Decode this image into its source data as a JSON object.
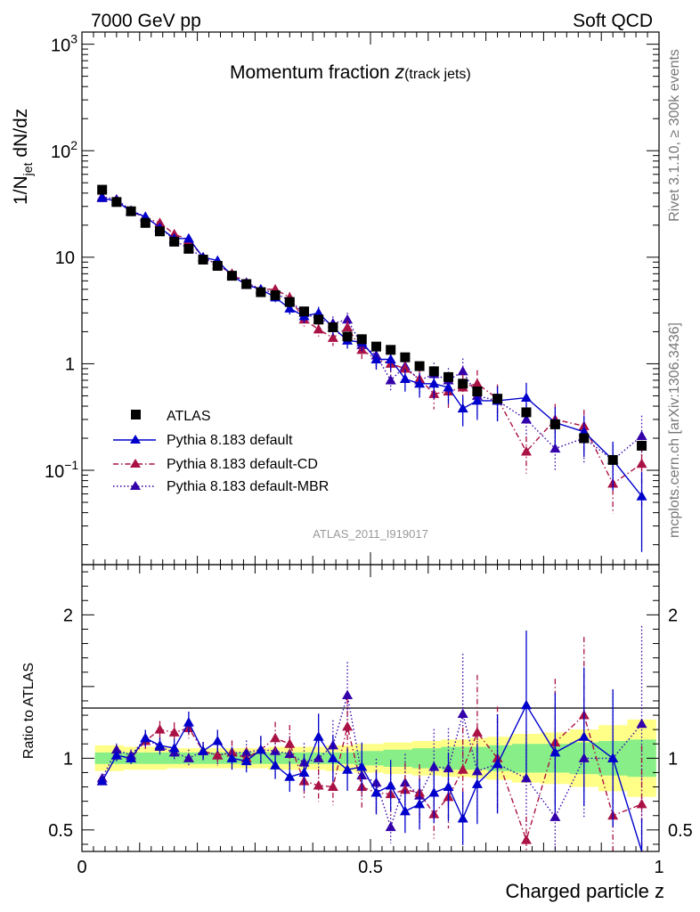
{
  "header": {
    "left": "7000 GeV pp",
    "right": "Soft QCD"
  },
  "side_labels": {
    "rivet": "Rivet 3.1.10, ≥ 300k events",
    "mcplots": "mcplots.cern.ch [arXiv:1306.3436]"
  },
  "analysis_id": "ATLAS_2011_I919017",
  "chart_data": [
    {
      "type": "scatter",
      "title_main": "Momentum fraction ",
      "title_z": "z",
      "title_sub": "(track jets)",
      "ylabel_prefix": "1/N",
      "ylabel_sub": "jet",
      "ylabel_suffix": " dN/dz",
      "yscale": "log",
      "ylim": [
        0.013,
        1300
      ],
      "xlim": [
        0,
        1
      ],
      "y_ticks": [
        {
          "value": 1000,
          "base": "10",
          "exp": "3"
        },
        {
          "value": 100,
          "base": "10",
          "exp": "2"
        },
        {
          "value": 10,
          "label": "10"
        },
        {
          "value": 1,
          "label": "1"
        },
        {
          "value": 0.1,
          "base": "10",
          "exp": "−1"
        }
      ],
      "legend_position": "middle-left",
      "x": [
        0.035,
        0.06,
        0.085,
        0.11,
        0.135,
        0.16,
        0.185,
        0.21,
        0.235,
        0.26,
        0.285,
        0.31,
        0.335,
        0.36,
        0.385,
        0.41,
        0.435,
        0.46,
        0.485,
        0.51,
        0.535,
        0.56,
        0.585,
        0.61,
        0.635,
        0.66,
        0.685,
        0.72,
        0.77,
        0.82,
        0.87,
        0.92,
        0.97
      ],
      "series": [
        {
          "name": "ATLAS",
          "style": "data",
          "color": "#000000",
          "values": [
            43,
            33,
            27,
            21,
            17.5,
            14,
            12,
            9.5,
            8.3,
            6.7,
            5.6,
            4.7,
            4.4,
            3.8,
            3.1,
            2.6,
            2.2,
            1.8,
            1.7,
            1.45,
            1.35,
            1.15,
            0.95,
            0.85,
            0.75,
            0.65,
            0.55,
            0.47,
            0.35,
            0.27,
            0.2,
            0.125,
            0.17
          ],
          "errors": [
            0,
            0,
            0,
            0,
            0,
            0,
            0,
            0,
            0,
            0,
            0,
            0,
            0,
            0,
            0,
            0,
            0,
            0,
            0,
            0,
            0,
            0,
            0,
            0,
            0,
            0,
            0,
            0,
            0,
            0,
            0,
            0,
            0.03
          ]
        },
        {
          "name": "Pythia 8.183 default",
          "style": "solid",
          "color": "#0000cc",
          "values": [
            36,
            33.5,
            27,
            24,
            19,
            15,
            15,
            10,
            9.3,
            6.7,
            5.5,
            5,
            4.2,
            3.3,
            2.8,
            3,
            2.2,
            1.65,
            1.6,
            1.1,
            1.1,
            0.72,
            0.65,
            0.65,
            0.6,
            0.38,
            0.45,
            0.45,
            0.48,
            0.28,
            0.23,
            0.125,
            0.057
          ],
          "errors": [
            0.03,
            0.04,
            0.04,
            0.05,
            0.05,
            0.06,
            0.06,
            0.06,
            0.07,
            0.08,
            0.08,
            0.09,
            0.1,
            0.12,
            0.14,
            0.14,
            0.16,
            0.16,
            0.18,
            0.2,
            0.22,
            0.24,
            0.26,
            0.28,
            0.3,
            0.32,
            0.34,
            0.36,
            0.38,
            0.4,
            0.42,
            0.48,
            0.7
          ]
        },
        {
          "name": "Pythia 8.183 default-CD",
          "style": "dashdot",
          "color": "#aa1144",
          "values": [
            36,
            33.5,
            27,
            23.5,
            21,
            16.5,
            14.5,
            10,
            8.5,
            7,
            5.6,
            5,
            5,
            4.2,
            2.6,
            2.1,
            1.75,
            2.2,
            1.35,
            1.1,
            1,
            0.9,
            0.72,
            0.52,
            0.55,
            0.6,
            0.65,
            0.47,
            0.15,
            0.3,
            0.26,
            0.075,
            0.115
          ],
          "errors": [
            0.03,
            0.04,
            0.04,
            0.05,
            0.05,
            0.06,
            0.06,
            0.06,
            0.07,
            0.08,
            0.08,
            0.09,
            0.1,
            0.12,
            0.14,
            0.14,
            0.16,
            0.16,
            0.18,
            0.2,
            0.22,
            0.24,
            0.26,
            0.28,
            0.3,
            0.32,
            0.34,
            0.36,
            0.38,
            0.4,
            0.42,
            0.48,
            0.6
          ]
        },
        {
          "name": "Pythia 8.183 default-MBR",
          "style": "dotted",
          "color": "#3300aa",
          "values": [
            37,
            35,
            27.5,
            24,
            19,
            14.5,
            12,
            10,
            8.5,
            7,
            5.8,
            5,
            4.6,
            3.9,
            3,
            2.6,
            2.4,
            2.6,
            1.5,
            1.2,
            0.7,
            0.95,
            0.7,
            0.8,
            0.7,
            0.85,
            0.5,
            0.45,
            0.3,
            0.16,
            0.2,
            0.125,
            0.21
          ],
          "errors": [
            0.03,
            0.04,
            0.04,
            0.05,
            0.05,
            0.06,
            0.06,
            0.06,
            0.07,
            0.08,
            0.08,
            0.09,
            0.1,
            0.12,
            0.14,
            0.14,
            0.16,
            0.16,
            0.18,
            0.2,
            0.22,
            0.24,
            0.26,
            0.28,
            0.3,
            0.32,
            0.34,
            0.36,
            0.38,
            0.4,
            0.42,
            0.48,
            0.55
          ]
        }
      ]
    },
    {
      "type": "scatter",
      "ylabel": "Ratio to ATLAS",
      "xlabel": "Charged particle z",
      "ylim": [
        0.35,
        2.35
      ],
      "xlim": [
        0,
        1
      ],
      "y_ticks": [
        "0.5",
        "1",
        "2"
      ],
      "x_ticks": [
        "0",
        "0.5",
        "1"
      ],
      "band_inner_halfwidth": [
        0.04,
        0.04,
        0.04,
        0.04,
        0.04,
        0.04,
        0.04,
        0.04,
        0.04,
        0.04,
        0.04,
        0.04,
        0.04,
        0.04,
        0.04,
        0.04,
        0.04,
        0.04,
        0.05,
        0.05,
        0.06,
        0.06,
        0.07,
        0.07,
        0.08,
        0.08,
        0.08,
        0.09,
        0.1,
        0.1,
        0.11,
        0.12,
        0.13
      ],
      "band_outer_halfwidth": [
        0.09,
        0.09,
        0.08,
        0.08,
        0.08,
        0.07,
        0.07,
        0.07,
        0.07,
        0.07,
        0.07,
        0.07,
        0.08,
        0.08,
        0.08,
        0.08,
        0.09,
        0.09,
        0.1,
        0.1,
        0.11,
        0.11,
        0.12,
        0.12,
        0.13,
        0.13,
        0.14,
        0.15,
        0.17,
        0.18,
        0.2,
        0.23,
        0.27
      ],
      "series": [
        {
          "name": "Pythia 8.183 default",
          "values": [
            0.84,
            1.02,
            1.0,
            1.14,
            1.09,
            1.07,
            1.25,
            1.05,
            1.12,
            1.0,
            0.98,
            1.06,
            0.95,
            0.87,
            0.9,
            1.15,
            1.0,
            0.92,
            0.94,
            0.76,
            0.81,
            0.63,
            0.68,
            0.76,
            0.8,
            0.58,
            0.82,
            0.96,
            1.37,
            1.04,
            1.15,
            1.0,
            0.34
          ],
          "errors": [
            0.03,
            0.04,
            0.04,
            0.05,
            0.05,
            0.06,
            0.06,
            0.06,
            0.07,
            0.08,
            0.08,
            0.09,
            0.1,
            0.12,
            0.14,
            0.14,
            0.16,
            0.16,
            0.18,
            0.2,
            0.22,
            0.24,
            0.26,
            0.28,
            0.3,
            0.32,
            0.34,
            0.36,
            0.38,
            0.4,
            0.42,
            0.48,
            0.7
          ]
        },
        {
          "name": "Pythia 8.183 default-CD",
          "values": [
            0.84,
            1.02,
            1.0,
            1.12,
            1.2,
            1.18,
            1.21,
            1.05,
            1.02,
            1.04,
            1.0,
            1.06,
            1.14,
            1.1,
            0.84,
            0.81,
            0.8,
            1.22,
            0.8,
            0.76,
            0.75,
            0.78,
            0.76,
            0.61,
            0.73,
            0.92,
            1.18,
            1.0,
            0.43,
            1.11,
            1.3,
            0.6,
            0.68
          ],
          "errors": [
            0.03,
            0.04,
            0.04,
            0.05,
            0.05,
            0.06,
            0.06,
            0.06,
            0.07,
            0.08,
            0.08,
            0.09,
            0.1,
            0.12,
            0.14,
            0.14,
            0.16,
            0.16,
            0.18,
            0.2,
            0.22,
            0.24,
            0.26,
            0.28,
            0.3,
            0.32,
            0.34,
            0.36,
            0.38,
            0.4,
            0.42,
            0.48,
            0.6
          ]
        },
        {
          "name": "Pythia 8.183 default-MBR",
          "values": [
            0.86,
            1.06,
            1.02,
            1.14,
            1.08,
            1.04,
            1.0,
            1.05,
            1.02,
            1.04,
            1.04,
            1.06,
            1.05,
            1.03,
            0.97,
            1.0,
            1.09,
            1.44,
            0.88,
            0.83,
            0.52,
            0.83,
            0.74,
            0.94,
            0.93,
            1.31,
            0.91,
            0.96,
            0.86,
            0.59,
            1.0,
            1.0,
            1.24
          ],
          "errors": [
            0.03,
            0.04,
            0.04,
            0.05,
            0.05,
            0.06,
            0.06,
            0.06,
            0.07,
            0.08,
            0.08,
            0.09,
            0.1,
            0.12,
            0.14,
            0.14,
            0.16,
            0.16,
            0.18,
            0.2,
            0.22,
            0.24,
            0.26,
            0.28,
            0.3,
            0.32,
            0.34,
            0.36,
            0.38,
            0.4,
            0.42,
            0.48,
            0.55
          ]
        }
      ]
    }
  ]
}
